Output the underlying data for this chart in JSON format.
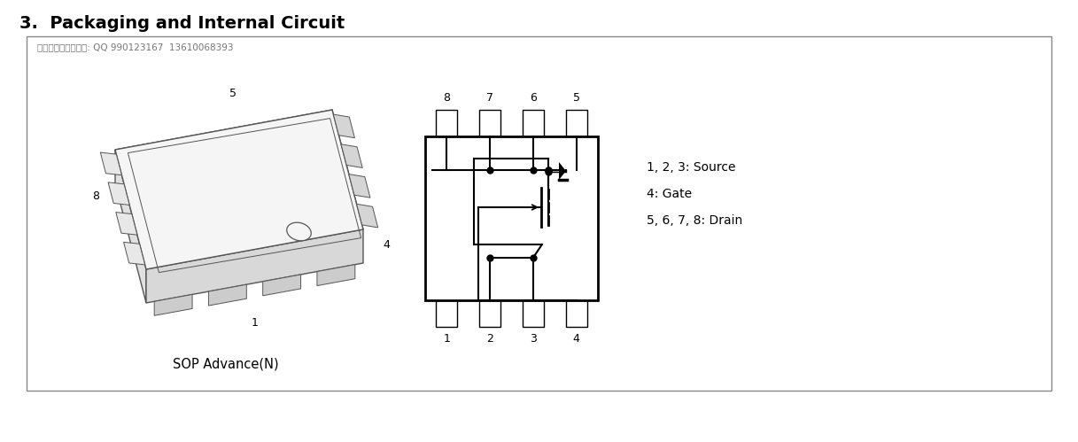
{
  "title": "3.  Packaging and Internal Circuit",
  "watermark": "东芝代理、大量现货: QQ 990123167  13610068393",
  "sop_label": "SOP Advance(N)",
  "pin_labels_top": [
    "8",
    "7",
    "6",
    "5"
  ],
  "pin_labels_bottom": [
    "1",
    "2",
    "3",
    "4"
  ],
  "legend_lines": [
    "1, 2, 3: Source",
    "4: Gate",
    "5, 6, 7, 8: Drain"
  ],
  "bg_color": "#ffffff",
  "line_color": "#000000",
  "pkg_line_color": "#555555"
}
